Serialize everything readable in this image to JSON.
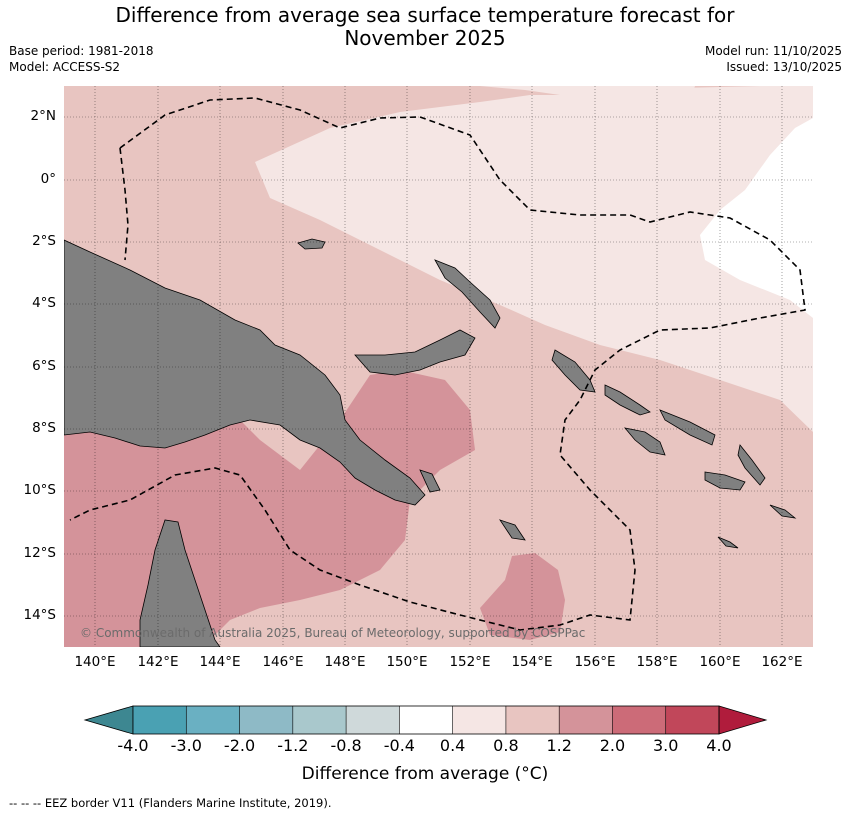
{
  "title": {
    "line1": "Difference from average sea surface temperature forecast for",
    "line2": "November 2025"
  },
  "meta": {
    "base_period": "Base period: 1981-2018",
    "model": "Model: ACCESS-S2",
    "model_run": "Model run: 11/10/2025",
    "issued": "Issued: 13/10/2025"
  },
  "map": {
    "lat_labels": [
      "2°N",
      "0°",
      "2°S",
      "4°S",
      "6°S",
      "8°S",
      "10°S",
      "12°S",
      "14°S"
    ],
    "lon_labels": [
      "140°E",
      "142°E",
      "144°E",
      "146°E",
      "148°E",
      "150°E",
      "152°E",
      "154°E",
      "156°E",
      "158°E",
      "160°E",
      "162°E"
    ],
    "copyright": "© Commonwealth of Australia 2025, Bureau of Meteorology, supported by COSPPac",
    "land_color": "#808080"
  },
  "colorbar": {
    "tick_labels": [
      "-4.0",
      "-3.0",
      "-2.0",
      "-1.2",
      "-0.8",
      "-0.4",
      "0.4",
      "0.8",
      "1.2",
      "2.0",
      "3.0",
      "4.0"
    ],
    "colors": [
      "#3d8791",
      "#4aa1b3",
      "#6ab0c2",
      "#8ebac6",
      "#a9c8cc",
      "#cfd9da",
      "#ffffff",
      "#f5e6e4",
      "#e8c5c1",
      "#d4939a",
      "#cc6b78",
      "#c1475a",
      "#b01c3c"
    ],
    "label": "Difference from average (°C)"
  },
  "footer": "--  --  -- EEZ border V11 (Flanders Marine Institute, 2019)."
}
